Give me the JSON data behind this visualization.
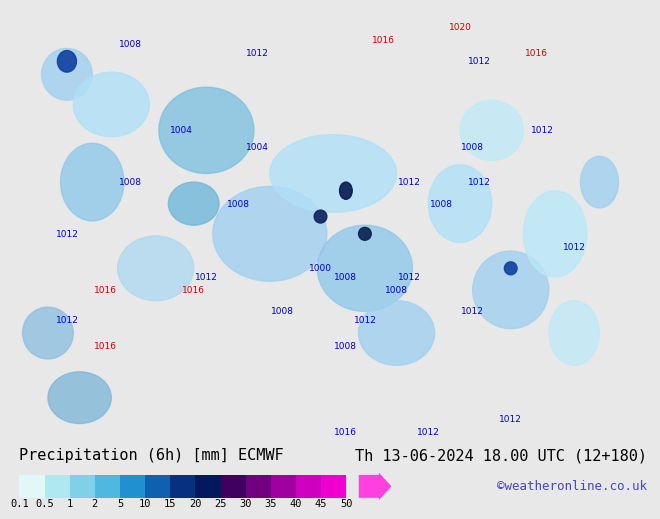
{
  "title_left": "Precipitation (6h) [mm] ECMWF",
  "title_right": "Th 13-06-2024 18.00 UTC (12+180)",
  "watermark": "©weatheronline.co.uk",
  "colorbar_labels": [
    "0.1",
    "0.5",
    "1",
    "2",
    "5",
    "10",
    "15",
    "20",
    "25",
    "30",
    "35",
    "40",
    "45",
    "50"
  ],
  "colorbar_values": [
    0.1,
    0.5,
    1,
    2,
    5,
    10,
    15,
    20,
    25,
    30,
    35,
    40,
    45,
    50
  ],
  "colorbar_colors": [
    "#e0f8f8",
    "#b0e8f0",
    "#80d0e8",
    "#50b8e0",
    "#2090d0",
    "#1060b0",
    "#083080",
    "#041860",
    "#400060",
    "#700080",
    "#a000a0",
    "#d000c0",
    "#f000d0",
    "#ff40e0"
  ],
  "bg_color": "#f0f0d0",
  "map_bg_color": "#c8e8b0",
  "title_fontsize": 11,
  "label_fontsize": 9,
  "watermark_fontsize": 9,
  "watermark_color": "#4444cc",
  "fig_width": 6.34,
  "fig_height": 4.9
}
